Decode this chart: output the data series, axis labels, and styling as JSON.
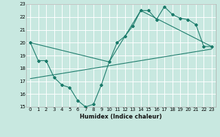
{
  "title": "",
  "xlabel": "Humidex (Indice chaleur)",
  "ylabel": "",
  "bg_color": "#c8e8e0",
  "grid_color": "#ffffff",
  "line_color": "#1a7a6a",
  "xlim": [
    -0.5,
    23.5
  ],
  "ylim": [
    15,
    23
  ],
  "xticks": [
    0,
    1,
    2,
    3,
    4,
    5,
    6,
    7,
    8,
    9,
    10,
    11,
    12,
    13,
    14,
    15,
    16,
    17,
    18,
    19,
    20,
    21,
    22,
    23
  ],
  "yticks": [
    15,
    16,
    17,
    18,
    19,
    20,
    21,
    22,
    23
  ],
  "curve1_x": [
    0,
    1,
    2,
    3,
    4,
    5,
    6,
    7,
    8,
    9,
    10,
    11,
    12,
    13,
    14,
    15,
    16,
    17,
    18,
    19,
    20,
    21,
    22,
    23
  ],
  "curve1_y": [
    20.0,
    18.6,
    18.6,
    17.3,
    16.7,
    16.5,
    15.5,
    15.0,
    15.2,
    16.7,
    18.5,
    20.0,
    20.5,
    21.3,
    22.5,
    22.5,
    21.8,
    22.8,
    22.2,
    21.9,
    21.8,
    21.4,
    19.7,
    19.7
  ],
  "curve2_x": [
    0,
    10,
    14,
    23
  ],
  "curve2_y": [
    20.0,
    18.5,
    22.5,
    19.7
  ],
  "regline_x": [
    0,
    23
  ],
  "regline_y": [
    17.2,
    19.5
  ]
}
